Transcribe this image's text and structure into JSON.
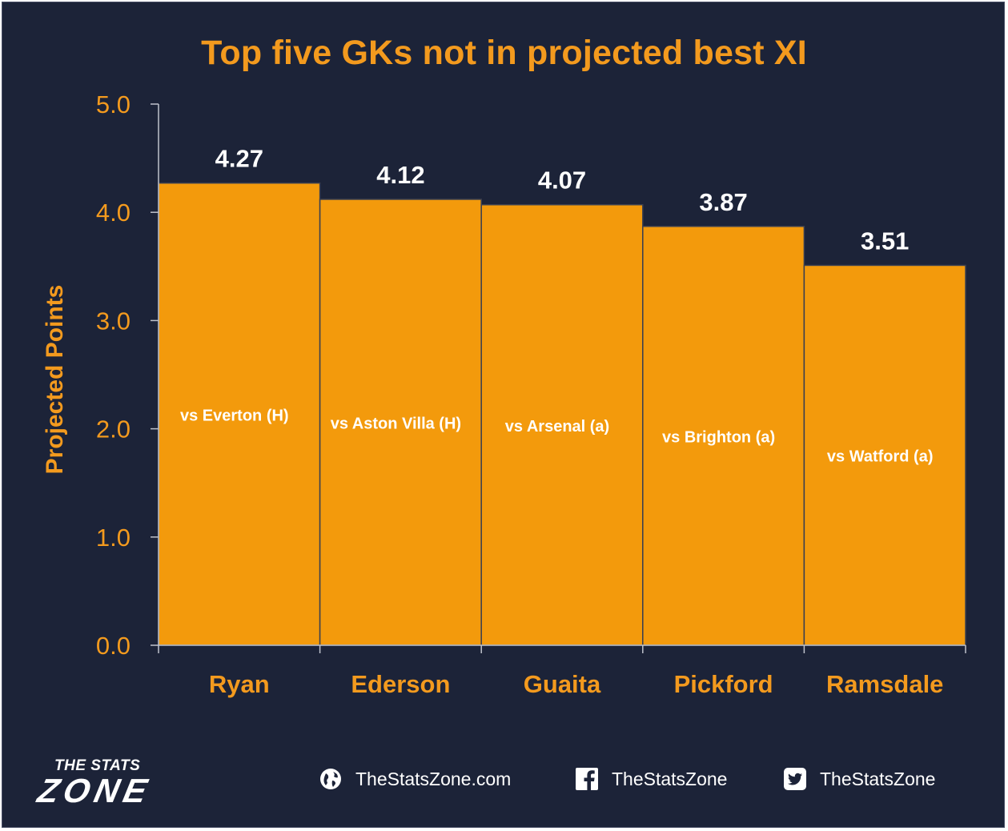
{
  "title": "Top five GKs not in projected best XI",
  "chart_data": {
    "type": "bar",
    "title": "Top five GKs not in projected best XI",
    "xlabel": "",
    "ylabel": "Projected Points",
    "ylim": [
      0,
      5
    ],
    "yticks": [
      "0.0",
      "1.0",
      "2.0",
      "3.0",
      "4.0",
      "5.0"
    ],
    "categories": [
      "Ryan",
      "Ederson",
      "Guaita",
      "Pickford",
      "Ramsdale"
    ],
    "values": [
      4.27,
      4.12,
      4.07,
      3.87,
      3.51
    ],
    "value_labels": [
      "4.27",
      "4.12",
      "4.07",
      "3.87",
      "3.51"
    ],
    "bar_labels": [
      "vs Everton (H)",
      "vs Aston Villa (H)",
      "vs Arsenal (a)",
      "vs Brighton (a)",
      "vs Watford (a)"
    ],
    "grid": false,
    "colors": {
      "bar": "#f39a0c",
      "text": "#f39a1e",
      "value": "#ffffff",
      "background": "#1c2338"
    }
  },
  "footer": {
    "logo_top": "THE STATS",
    "logo_main": "ZONE",
    "website": "TheStatsZone.com",
    "facebook": "TheStatsZone",
    "twitter": "TheStatsZone",
    "icons": [
      "globe-icon",
      "facebook-icon",
      "twitter-icon"
    ]
  }
}
